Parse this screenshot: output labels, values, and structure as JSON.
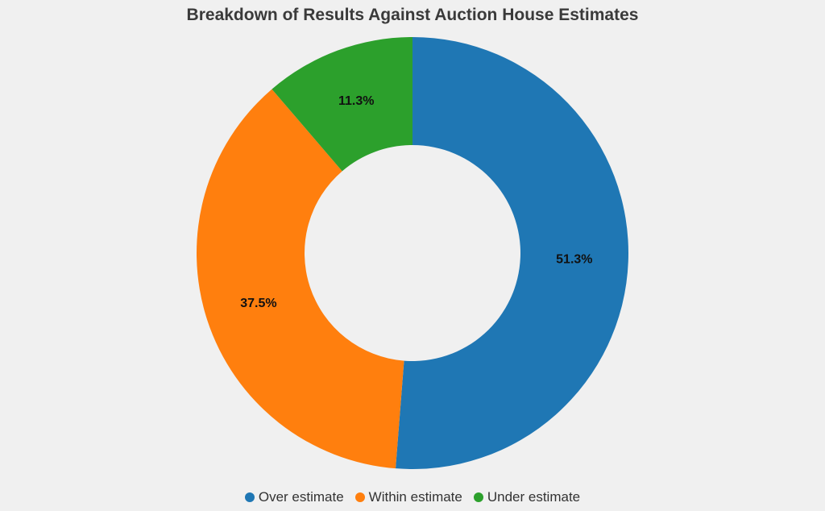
{
  "chart_data": {
    "type": "pie",
    "variant": "donut",
    "title": "Breakdown of Results Against Auction House Estimates",
    "categories": [
      "Over estimate",
      "Within estimate",
      "Under estimate"
    ],
    "values": [
      51.3,
      37.5,
      11.3
    ],
    "data_labels": [
      "51.3%",
      "37.5%",
      "11.3%"
    ],
    "colors": [
      "#1f77b4",
      "#ff7f0e",
      "#2ca02c"
    ],
    "start": "12 o'clock",
    "direction": "clockwise",
    "legend_position": "bottom-center"
  }
}
